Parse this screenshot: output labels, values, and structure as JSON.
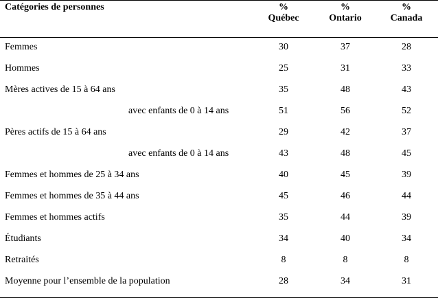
{
  "header": {
    "category": "Catégories de personnes",
    "columns": [
      {
        "symbol": "%",
        "name": "Québec"
      },
      {
        "symbol": "%",
        "name": "Ontario"
      },
      {
        "symbol": "%",
        "name": "Canada"
      }
    ]
  },
  "rows": [
    {
      "label": "Femmes",
      "indent": false,
      "values": [
        "30",
        "37",
        "28"
      ]
    },
    {
      "label": "Hommes",
      "indent": false,
      "values": [
        "25",
        "31",
        "33"
      ]
    },
    {
      "label": "Mères actives de 15 à 64 ans",
      "indent": false,
      "values": [
        "35",
        "48",
        "43"
      ]
    },
    {
      "label": "avec enfants de 0 à 14 ans",
      "indent": true,
      "values": [
        "51",
        "56",
        "52"
      ]
    },
    {
      "label": "Pères actifs de 15 à 64 ans",
      "indent": false,
      "values": [
        "29",
        "42",
        "37"
      ]
    },
    {
      "label": "avec enfants de 0 à 14 ans",
      "indent": true,
      "values": [
        "43",
        "48",
        "45"
      ]
    },
    {
      "label": "Femmes et hommes de 25 à 34 ans",
      "indent": false,
      "values": [
        "40",
        "45",
        "39"
      ]
    },
    {
      "label": "Femmes et hommes de 35 à 44 ans",
      "indent": false,
      "values": [
        "45",
        "46",
        "44"
      ]
    },
    {
      "label": "Femmes et hommes actifs",
      "indent": false,
      "values": [
        "35",
        "44",
        "39"
      ]
    },
    {
      "label": "Étudiants",
      "indent": false,
      "values": [
        "34",
        "40",
        "34"
      ]
    },
    {
      "label": "Retraités",
      "indent": false,
      "values": [
        "8",
        "8",
        "8"
      ]
    },
    {
      "label": "Moyenne pour l’ensemble de la population",
      "indent": false,
      "values": [
        "28",
        "34",
        "31"
      ]
    }
  ]
}
